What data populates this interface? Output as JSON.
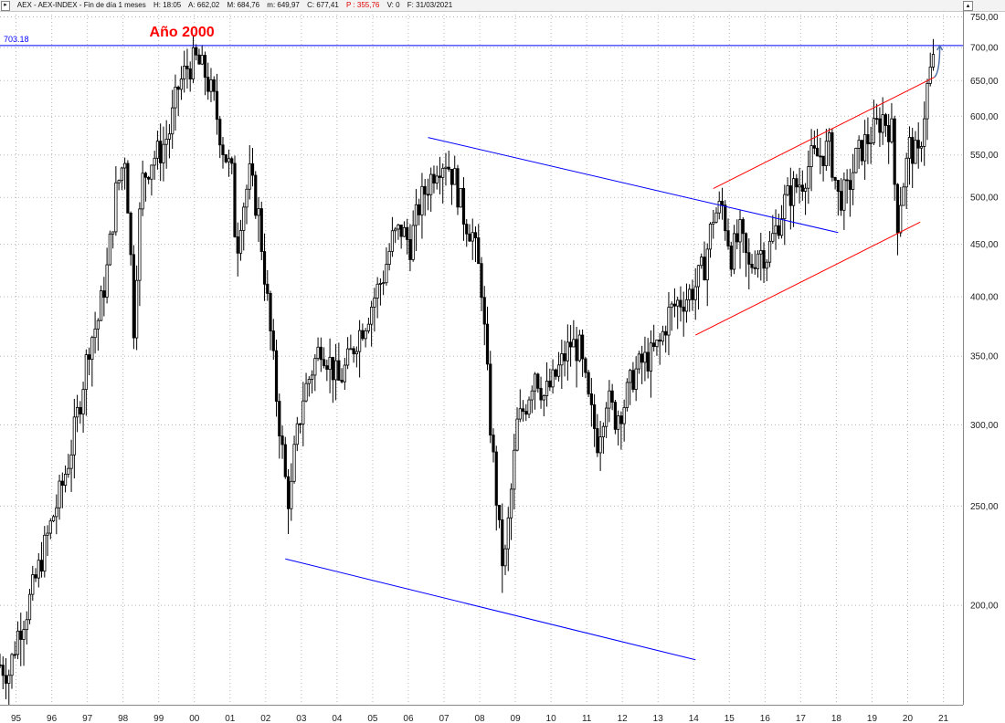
{
  "header": {
    "symbol": "AEX",
    "description": "AEX - AEX-INDEX - Fin de día 1 meses",
    "time": "H: 18:05",
    "open": "A: 662,02",
    "high": "M: 684,76",
    "low": "m: 649,97",
    "close": "C: 677,41",
    "change": "P : 355,76",
    "volume": "V: 0",
    "date": "F: 31/03/2021",
    "change_color": "#e00000"
  },
  "chart_data": {
    "type": "candlestick",
    "title": "",
    "xlabel": "",
    "ylabel": "",
    "log_scale": true,
    "grid": true,
    "ylim": [
      160,
      760
    ],
    "xlim": [
      1995.0,
      2022.0
    ],
    "yticks": [
      200,
      250,
      300,
      350,
      400,
      450,
      500,
      550,
      600,
      650,
      700,
      750
    ],
    "ytick_labels": [
      "200,00",
      "250,00",
      "300,00",
      "350,00",
      "400,00",
      "450,00",
      "500,00",
      "550,00",
      "600,00",
      "650,00",
      "700,00",
      "750,00"
    ],
    "xticks": [
      "95",
      "96",
      "97",
      "98",
      "99",
      "00",
      "01",
      "02",
      "03",
      "04",
      "05",
      "06",
      "07",
      "08",
      "09",
      "10",
      "11",
      "12",
      "13",
      "14",
      "15",
      "16",
      "17",
      "18",
      "19",
      "20",
      "21"
    ],
    "annotations": {
      "label": "Año 2000",
      "label_color": "#ff0000",
      "hline_value": 703.18,
      "hline_label": "703.18",
      "hline_color": "#0000ff"
    },
    "trendlines": [
      {
        "name": "upper-blue-line",
        "color": "#0000ff",
        "from": [
          2007.0,
          572
        ],
        "to": [
          2018.5,
          462
        ]
      },
      {
        "name": "lower-blue-line",
        "color": "#0000ff",
        "from": [
          2003.0,
          222
        ],
        "to": [
          2014.5,
          177
        ]
      },
      {
        "name": "upper-red-line",
        "color": "#ff0000",
        "from": [
          2015.0,
          510
        ],
        "to": [
          2021.2,
          655
        ]
      },
      {
        "name": "lower-red-line",
        "color": "#ff0000",
        "from": [
          2014.5,
          367
        ],
        "to": [
          2020.8,
          473
        ]
      }
    ],
    "projection_arrow": {
      "color": "#4f6fa8",
      "from": [
        2021.2,
        655
      ],
      "to": [
        2021.35,
        703
      ]
    },
    "colors": {
      "candle": "#000000",
      "grid": "#b8b8b8"
    },
    "anchors": [
      [
        1995.0,
        175
      ],
      [
        1995.25,
        172
      ],
      [
        1995.5,
        188
      ],
      [
        1995.75,
        198
      ],
      [
        1996.0,
        212
      ],
      [
        1996.25,
        228
      ],
      [
        1996.5,
        245
      ],
      [
        1996.75,
        262
      ],
      [
        1997.0,
        285
      ],
      [
        1997.25,
        318
      ],
      [
        1997.5,
        360
      ],
      [
        1997.75,
        380
      ],
      [
        1998.0,
        425
      ],
      [
        1998.25,
        505
      ],
      [
        1998.5,
        550
      ],
      [
        1998.625,
        470
      ],
      [
        1998.75,
        375
      ],
      [
        1998.875,
        460
      ],
      [
        1999.0,
        520
      ],
      [
        1999.25,
        545
      ],
      [
        1999.5,
        555
      ],
      [
        1999.75,
        580
      ],
      [
        2000.0,
        640
      ],
      [
        2000.25,
        670
      ],
      [
        2000.5,
        680
      ],
      [
        2000.75,
        660
      ],
      [
        2001.0,
        620
      ],
      [
        2001.25,
        560
      ],
      [
        2001.5,
        525
      ],
      [
        2001.625,
        440
      ],
      [
        2001.75,
        480
      ],
      [
        2002.0,
        525
      ],
      [
        2002.25,
        480
      ],
      [
        2002.5,
        395
      ],
      [
        2002.75,
        320
      ],
      [
        2003.0,
        265
      ],
      [
        2003.125,
        250
      ],
      [
        2003.25,
        280
      ],
      [
        2003.5,
        320
      ],
      [
        2003.75,
        340
      ],
      [
        2004.0,
        360
      ],
      [
        2004.25,
        345
      ],
      [
        2004.5,
        330
      ],
      [
        2004.75,
        345
      ],
      [
        2005.0,
        365
      ],
      [
        2005.25,
        380
      ],
      [
        2005.5,
        400
      ],
      [
        2005.75,
        420
      ],
      [
        2006.0,
        455
      ],
      [
        2006.25,
        465
      ],
      [
        2006.5,
        450
      ],
      [
        2006.75,
        490
      ],
      [
        2007.0,
        515
      ],
      [
        2007.25,
        540
      ],
      [
        2007.5,
        545
      ],
      [
        2007.75,
        520
      ],
      [
        2008.0,
        480
      ],
      [
        2008.25,
        460
      ],
      [
        2008.5,
        410
      ],
      [
        2008.75,
        300
      ],
      [
        2009.0,
        235
      ],
      [
        2009.125,
        215
      ],
      [
        2009.25,
        240
      ],
      [
        2009.5,
        300
      ],
      [
        2009.75,
        315
      ],
      [
        2010.0,
        340
      ],
      [
        2010.25,
        320
      ],
      [
        2010.5,
        330
      ],
      [
        2010.75,
        345
      ],
      [
        2011.0,
        360
      ],
      [
        2011.25,
        355
      ],
      [
        2011.5,
        315
      ],
      [
        2011.75,
        290
      ],
      [
        2012.0,
        320
      ],
      [
        2012.25,
        305
      ],
      [
        2012.5,
        315
      ],
      [
        2012.75,
        335
      ],
      [
        2013.0,
        345
      ],
      [
        2013.25,
        350
      ],
      [
        2013.5,
        360
      ],
      [
        2013.75,
        385
      ],
      [
        2014.0,
        395
      ],
      [
        2014.25,
        400
      ],
      [
        2014.5,
        410
      ],
      [
        2014.75,
        430
      ],
      [
        2015.0,
        480
      ],
      [
        2015.25,
        490
      ],
      [
        2015.5,
        440
      ],
      [
        2015.75,
        460
      ],
      [
        2016.0,
        425
      ],
      [
        2016.25,
        445
      ],
      [
        2016.5,
        440
      ],
      [
        2016.75,
        465
      ],
      [
        2017.0,
        495
      ],
      [
        2017.25,
        510
      ],
      [
        2017.5,
        520
      ],
      [
        2017.75,
        545
      ],
      [
        2018.0,
        550
      ],
      [
        2018.25,
        560
      ],
      [
        2018.5,
        500
      ],
      [
        2018.75,
        505
      ],
      [
        2019.0,
        545
      ],
      [
        2019.25,
        565
      ],
      [
        2019.5,
        580
      ],
      [
        2019.75,
        600
      ],
      [
        2020.0,
        580
      ],
      [
        2020.15,
        470
      ],
      [
        2020.25,
        500
      ],
      [
        2020.5,
        560
      ],
      [
        2020.75,
        545
      ],
      [
        2021.0,
        640
      ],
      [
        2021.08,
        662
      ],
      [
        2021.17,
        677
      ]
    ]
  }
}
